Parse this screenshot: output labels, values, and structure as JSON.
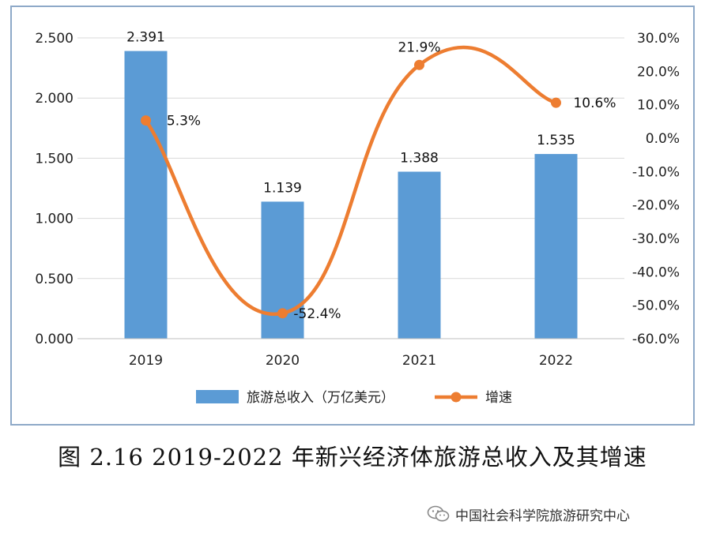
{
  "chart_data": {
    "type": "bar",
    "categories": [
      "2019",
      "2020",
      "2021",
      "2022"
    ],
    "series": [
      {
        "name": "旅游总收入（万亿美元）",
        "type": "bar",
        "axis": "left",
        "values": [
          2.391,
          1.139,
          1.388,
          1.535
        ],
        "labels": [
          "2.391",
          "1.139",
          "1.388",
          "1.535"
        ],
        "color": "#5B9BD5"
      },
      {
        "name": "增速",
        "type": "line",
        "axis": "right",
        "values": [
          5.3,
          -52.4,
          21.9,
          10.6
        ],
        "labels": [
          "5.3%",
          "-52.4%",
          "21.9%",
          "10.6%"
        ],
        "color": "#ED7D31"
      }
    ],
    "y_left": {
      "ylim": [
        0,
        2.5
      ],
      "ticks": [
        "0.000",
        "0.500",
        "1.000",
        "1.500",
        "2.000",
        "2.500"
      ]
    },
    "y_right": {
      "ylim": [
        -60,
        30
      ],
      "ticks": [
        "-60.0%",
        "-50.0%",
        "-40.0%",
        "-30.0%",
        "-20.0%",
        "-10.0%",
        "0.0%",
        "10.0%",
        "20.0%",
        "30.0%"
      ]
    },
    "grid": true,
    "legend_position": "bottom"
  },
  "caption": "图 2.16 2019-2022 年新兴经济体旅游总收入及其增速",
  "watermark": "中国社会科学院旅游研究中心"
}
